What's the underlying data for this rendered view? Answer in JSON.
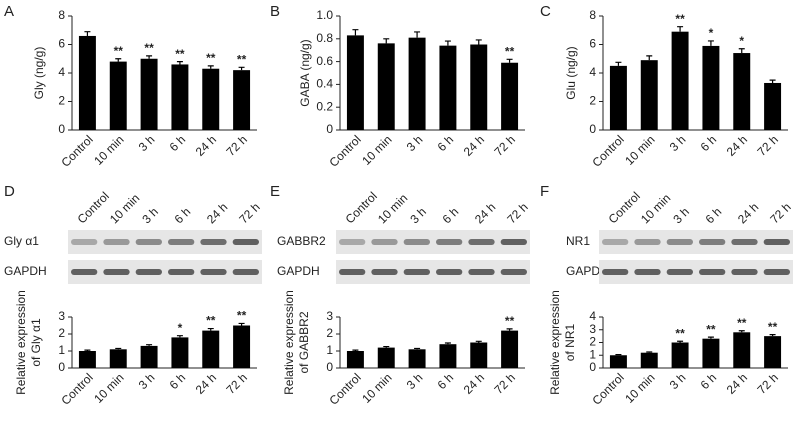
{
  "chart_data": [
    {
      "type": "bar",
      "panel_label": "A",
      "ylabel": "Gly (ng/g)",
      "color": "#000000",
      "categories": [
        "Control",
        "10 min",
        "3 h",
        "6 h",
        "24 h",
        "72 h"
      ],
      "values": [
        6.6,
        4.8,
        5.0,
        4.6,
        4.3,
        4.2
      ],
      "errors": [
        0.3,
        0.2,
        0.2,
        0.2,
        0.2,
        0.2
      ],
      "annotations": [
        null,
        "**",
        "**",
        "**",
        "**",
        "**"
      ],
      "ylim": [
        0,
        8
      ],
      "yticks": [
        0,
        2,
        4,
        6,
        8
      ]
    },
    {
      "type": "bar",
      "panel_label": "B",
      "ylabel": "GABA (ng/g)",
      "color": "#000000",
      "categories": [
        "Control",
        "10 min",
        "3 h",
        "6 h",
        "24 h",
        "72 h"
      ],
      "values": [
        0.83,
        0.76,
        0.81,
        0.74,
        0.75,
        0.59
      ],
      "errors": [
        0.05,
        0.04,
        0.05,
        0.04,
        0.04,
        0.03
      ],
      "annotations": [
        null,
        null,
        null,
        null,
        null,
        "**"
      ],
      "ylim": [
        0,
        1.0
      ],
      "yticks": [
        0,
        0.2,
        0.4,
        0.6,
        0.8,
        {
          "value": 1.0,
          "label": "1.0"
        }
      ]
    },
    {
      "type": "bar",
      "panel_label": "C",
      "ylabel": "Glu (ng/g)",
      "color": "#000000",
      "categories": [
        "Control",
        "10 min",
        "3 h",
        "6 h",
        "24 h",
        "72 h"
      ],
      "values": [
        4.5,
        4.9,
        6.9,
        5.9,
        5.4,
        3.3
      ],
      "errors": [
        0.25,
        0.3,
        0.35,
        0.35,
        0.3,
        0.2
      ],
      "annotations": [
        null,
        null,
        "**",
        "*",
        "*",
        null
      ],
      "ylim": [
        0,
        8
      ],
      "yticks": [
        0,
        2,
        4,
        6,
        8
      ]
    },
    {
      "type": "bar",
      "panel_label": "D",
      "ylabel": [
        "Relative expression",
        "of Gly α1"
      ],
      "color": "#000000",
      "blot_rows": [
        "Gly α1",
        "GAPDH"
      ],
      "categories": [
        "Control",
        "10 min",
        "3 h",
        "6 h",
        "24 h",
        "72 h"
      ],
      "values": [
        1.0,
        1.1,
        1.3,
        1.8,
        2.2,
        2.5
      ],
      "errors": [
        0.05,
        0.05,
        0.07,
        0.1,
        0.12,
        0.12
      ],
      "annotations": [
        null,
        null,
        null,
        "*",
        "**",
        "**"
      ],
      "ylim": [
        0,
        3
      ],
      "yticks": [
        0,
        1,
        2,
        3
      ]
    },
    {
      "type": "bar",
      "panel_label": "E",
      "ylabel": [
        "Relative expression",
        "of GABBR2"
      ],
      "color": "#000000",
      "blot_rows": [
        "GABBR2",
        "GAPDH"
      ],
      "categories": [
        "Control",
        "10 min",
        "3 h",
        "6 h",
        "24 h",
        "72 h"
      ],
      "values": [
        1.0,
        1.2,
        1.1,
        1.4,
        1.5,
        2.2
      ],
      "errors": [
        0.05,
        0.06,
        0.05,
        0.07,
        0.07,
        0.1
      ],
      "annotations": [
        null,
        null,
        null,
        null,
        null,
        "**"
      ],
      "ylim": [
        0,
        3
      ],
      "yticks": [
        0,
        1,
        2,
        3
      ]
    },
    {
      "type": "bar",
      "panel_label": "F",
      "ylabel": [
        "Relative expression",
        "of NR1"
      ],
      "color": "#000000",
      "blot_rows": [
        "NR1",
        "GAPDH"
      ],
      "categories": [
        "Control",
        "10 min",
        "3 h",
        "6 h",
        "24 h",
        "72 h"
      ],
      "values": [
        1.0,
        1.2,
        2.0,
        2.3,
        2.8,
        2.5
      ],
      "errors": [
        0.05,
        0.06,
        0.1,
        0.12,
        0.12,
        0.12
      ],
      "annotations": [
        null,
        null,
        "**",
        "**",
        "**",
        "**"
      ],
      "ylim": [
        0,
        4
      ],
      "yticks": [
        0,
        1,
        2,
        3,
        4
      ]
    }
  ]
}
